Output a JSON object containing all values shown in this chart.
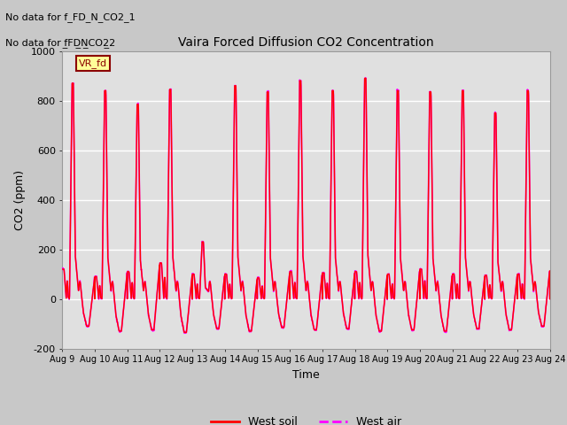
{
  "title": "Vaira Forced Diffusion CO2 Concentration",
  "xlabel": "Time",
  "ylabel": "CO2 (ppm)",
  "ylim": [
    -200,
    1000
  ],
  "yticks": [
    -200,
    0,
    200,
    400,
    600,
    800,
    1000
  ],
  "xtick_labels": [
    "Aug 9",
    "Aug 10",
    "Aug 11",
    "Aug 12",
    "Aug 13",
    "Aug 14",
    "Aug 15",
    "Aug 16",
    "Aug 17",
    "Aug 18",
    "Aug 19",
    "Aug 20",
    "Aug 21",
    "Aug 22",
    "Aug 23",
    "Aug 24"
  ],
  "num_days": 15,
  "color_soil": "#ff0000",
  "color_air": "#ff00ff",
  "no_data_text1": "No data for f_FD_N_CO2_1",
  "no_data_text2": "No data for f̲FD̲N̲CO2̲2",
  "legend_box_label": "VR_fd",
  "legend_soil": "West soil",
  "legend_air": "West air",
  "peak_values": [
    870,
    840,
    785,
    845,
    230,
    860,
    835,
    880,
    840,
    890,
    840,
    835,
    840,
    750,
    840
  ],
  "trough_values": [
    -110,
    -130,
    -125,
    -135,
    -120,
    -130,
    -115,
    -125,
    -120,
    -130,
    -125,
    -130,
    -120,
    -125,
    -110
  ],
  "mid_values": [
    120,
    90,
    110,
    145,
    100,
    100,
    85,
    110,
    105,
    110,
    100,
    120,
    100,
    95,
    100
  ],
  "fig_bg": "#c8c8c8",
  "plot_bg": "#e0e0e0"
}
